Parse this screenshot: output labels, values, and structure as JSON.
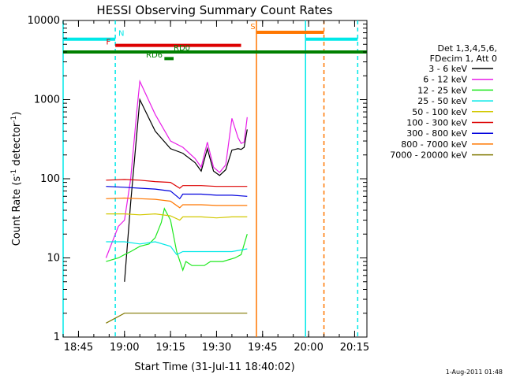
{
  "chart_data": {
    "type": "line",
    "title": "HESSI Observing Summary Count Rates",
    "xlabel": "Start Time (31-Jul-11 18:40:02)",
    "ylabel_main": "Count Rate (s",
    "ylabel_exp1": "-1",
    "ylabel_mid": " detector",
    "ylabel_exp2": "-1",
    "ylabel_end": ")",
    "y_scale": "log",
    "ylim": [
      1,
      10000
    ],
    "xlim": [
      "18:40",
      "20:19"
    ],
    "x_ticks": [
      "18:45",
      "19:00",
      "19:15",
      "19:30",
      "19:45",
      "20:00",
      "20:15"
    ],
    "y_ticks": [
      "1",
      "10",
      "100",
      "1000",
      "10000"
    ],
    "legend": {
      "header_line1": "Det 1,3,4,5,6,",
      "header_line2": "FDecim 1, Att 0",
      "placement": "right",
      "entries": [
        {
          "label": "3 - 6 keV",
          "color": "#000000"
        },
        {
          "label": "6 - 12 keV",
          "color": "#e81ee8"
        },
        {
          "label": "12 - 25 keV",
          "color": "#1ee81e"
        },
        {
          "label": "25 - 50 keV",
          "color": "#00e8e8"
        },
        {
          "label": "50 - 100 keV",
          "color": "#d2c800"
        },
        {
          "label": "100 - 300 keV",
          "color": "#dd0000"
        },
        {
          "label": "300 - 800 keV",
          "color": "#0000dd"
        },
        {
          "label": "800 - 7000 keV",
          "color": "#ff7700"
        },
        {
          "label": "7000 - 20000 keV",
          "color": "#807800"
        }
      ]
    },
    "series": [
      {
        "name": "3 - 6 keV",
        "color": "#000000",
        "points": [
          [
            "19:00",
            5
          ],
          [
            "19:02",
            50
          ],
          [
            "19:05",
            1000
          ],
          [
            "19:10",
            400
          ],
          [
            "19:15",
            240
          ],
          [
            "19:19",
            210
          ],
          [
            "19:23",
            160
          ],
          [
            "19:25",
            125
          ],
          [
            "19:27",
            240
          ],
          [
            "19:29",
            125
          ],
          [
            "19:31",
            110
          ],
          [
            "19:33",
            130
          ],
          [
            "19:35",
            230
          ],
          [
            "19:37",
            240
          ],
          [
            "19:38",
            235
          ],
          [
            "19:39",
            250
          ],
          [
            "19:40",
            420
          ]
        ]
      },
      {
        "name": "6 - 12 keV",
        "color": "#e81ee8",
        "points": [
          [
            "18:54",
            10
          ],
          [
            "18:58",
            25
          ],
          [
            "19:00",
            30
          ],
          [
            "19:02",
            100
          ],
          [
            "19:04",
            700
          ],
          [
            "19:05",
            1700
          ],
          [
            "19:10",
            650
          ],
          [
            "19:15",
            300
          ],
          [
            "19:19",
            250
          ],
          [
            "19:23",
            180
          ],
          [
            "19:25",
            140
          ],
          [
            "19:27",
            290
          ],
          [
            "19:29",
            140
          ],
          [
            "19:31",
            120
          ],
          [
            "19:33",
            150
          ],
          [
            "19:35",
            580
          ],
          [
            "19:37",
            330
          ],
          [
            "19:38",
            280
          ],
          [
            "19:39",
            290
          ],
          [
            "19:40",
            600
          ]
        ]
      },
      {
        "name": "12 - 25 keV",
        "color": "#1ee81e",
        "points": [
          [
            "18:54",
            9
          ],
          [
            "18:58",
            10
          ],
          [
            "19:00",
            11
          ],
          [
            "19:02",
            12
          ],
          [
            "19:05",
            14
          ],
          [
            "19:08",
            15
          ],
          [
            "19:10",
            18
          ],
          [
            "19:12",
            28
          ],
          [
            "19:13",
            42
          ],
          [
            "19:15",
            30
          ],
          [
            "19:17",
            12
          ],
          [
            "19:19",
            7
          ],
          [
            "19:20",
            9
          ],
          [
            "19:22",
            8
          ],
          [
            "19:26",
            8
          ],
          [
            "19:28",
            9
          ],
          [
            "19:32",
            9
          ],
          [
            "19:36",
            10
          ],
          [
            "19:38",
            11
          ],
          [
            "19:40",
            20
          ]
        ]
      },
      {
        "name": "25 - 50 keV",
        "color": "#00e8e8",
        "points": [
          [
            "18:54",
            16
          ],
          [
            "19:00",
            16
          ],
          [
            "19:05",
            15
          ],
          [
            "19:10",
            16
          ],
          [
            "19:15",
            14
          ],
          [
            "19:17",
            11
          ],
          [
            "19:19",
            12
          ],
          [
            "19:25",
            12
          ],
          [
            "19:30",
            12
          ],
          [
            "19:35",
            12
          ],
          [
            "19:40",
            13
          ]
        ]
      },
      {
        "name": "50 - 100 keV",
        "color": "#d2c800",
        "points": [
          [
            "18:54",
            36
          ],
          [
            "19:00",
            36
          ],
          [
            "19:05",
            35
          ],
          [
            "19:10",
            36
          ],
          [
            "19:15",
            34
          ],
          [
            "19:18",
            30
          ],
          [
            "19:19",
            33
          ],
          [
            "19:25",
            33
          ],
          [
            "19:30",
            32
          ],
          [
            "19:35",
            33
          ],
          [
            "19:40",
            33
          ]
        ]
      },
      {
        "name": "100 - 300 keV",
        "color": "#dd0000",
        "points": [
          [
            "18:54",
            96
          ],
          [
            "19:00",
            98
          ],
          [
            "19:05",
            96
          ],
          [
            "19:10",
            92
          ],
          [
            "19:15",
            90
          ],
          [
            "19:18",
            76
          ],
          [
            "19:19",
            82
          ],
          [
            "19:25",
            82
          ],
          [
            "19:30",
            80
          ],
          [
            "19:35",
            80
          ],
          [
            "19:40",
            80
          ]
        ]
      },
      {
        "name": "300 - 800 keV",
        "color": "#0000dd",
        "points": [
          [
            "18:54",
            80
          ],
          [
            "19:00",
            78
          ],
          [
            "19:05",
            76
          ],
          [
            "19:10",
            74
          ],
          [
            "19:15",
            70
          ],
          [
            "19:18",
            56
          ],
          [
            "19:19",
            64
          ],
          [
            "19:25",
            64
          ],
          [
            "19:30",
            62
          ],
          [
            "19:35",
            62
          ],
          [
            "19:40",
            60
          ]
        ]
      },
      {
        "name": "800 - 7000 keV",
        "color": "#ff7700",
        "points": [
          [
            "18:54",
            56
          ],
          [
            "19:00",
            57
          ],
          [
            "19:05",
            56
          ],
          [
            "19:10",
            55
          ],
          [
            "19:15",
            52
          ],
          [
            "19:18",
            43
          ],
          [
            "19:19",
            47
          ],
          [
            "19:25",
            47
          ],
          [
            "19:30",
            46
          ],
          [
            "19:35",
            46
          ],
          [
            "19:40",
            46
          ]
        ]
      },
      {
        "name": "7000 - 20000 keV",
        "color": "#807800",
        "points": [
          [
            "18:54",
            1.5
          ],
          [
            "19:00",
            2
          ],
          [
            "19:05",
            2
          ],
          [
            "19:10",
            2
          ],
          [
            "19:15",
            2
          ],
          [
            "19:20",
            2
          ],
          [
            "19:25",
            2
          ],
          [
            "19:30",
            2
          ],
          [
            "19:35",
            2
          ],
          [
            "19:40",
            2
          ]
        ]
      }
    ],
    "flag_bars": [
      {
        "color": "#00e8e8",
        "x0": "18:40",
        "x1": "18:57",
        "y": 5800
      },
      {
        "color": "#00e8e8",
        "x0": "19:59",
        "x1": "20:16",
        "y": 5800
      },
      {
        "color": "#ff7700",
        "x0": "19:43",
        "x1": "20:05",
        "y": 7100
      },
      {
        "color": "#dd0000",
        "x0": "18:57",
        "x1": "19:38",
        "y": 4850
      },
      {
        "color": "#008000",
        "x0": "18:40",
        "x1": "20:19",
        "y": 4000
      },
      {
        "color": "#008000",
        "x0": "19:13",
        "x1": "19:16",
        "y": 3300
      }
    ],
    "flag_labels": [
      {
        "text": "N",
        "color": "#00e8e8",
        "x": "18:58",
        "y": 6400
      },
      {
        "text": "F",
        "color": "#dd0000",
        "x": "18:54",
        "y": 5000
      },
      {
        "text": "S",
        "color": "#ff7700",
        "x": "19:41",
        "y": 7800
      },
      {
        "text": "RD0",
        "color": "#008000",
        "x": "19:16",
        "y": 4200
      },
      {
        "text": "RD6",
        "color": "#008000",
        "x": "19:07",
        "y": 3400
      }
    ],
    "vertical_lines": [
      {
        "x": "18:40",
        "color": "#00e8e8",
        "style": "solid"
      },
      {
        "x": "18:57",
        "color": "#00e8e8",
        "style": "dashed"
      },
      {
        "x": "19:43",
        "color": "#ff7700",
        "style": "solid"
      },
      {
        "x": "19:59",
        "color": "#00e8e8",
        "style": "solid"
      },
      {
        "x": "20:05",
        "color": "#ff7700",
        "style": "dashed"
      },
      {
        "x": "20:16",
        "color": "#00e8e8",
        "style": "dashed"
      }
    ],
    "footer": "1-Aug-2011 01:48"
  }
}
